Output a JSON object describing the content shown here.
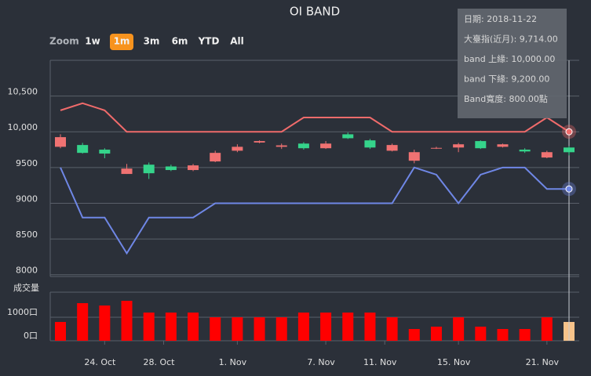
{
  "chart_data": {
    "type": "candlestick",
    "title": "OI BAND",
    "range_selector": {
      "label": "Zoom",
      "buttons": [
        "1w",
        "1m",
        "3m",
        "6m",
        "YTD",
        "All"
      ],
      "selected": 1,
      "selected_color": "#f7931e"
    },
    "x": [
      "2018-10-22",
      "2018-10-23",
      "2018-10-24",
      "2018-10-25",
      "2018-10-26",
      "2018-10-29",
      "2018-10-30",
      "2018-10-31",
      "2018-11-01",
      "2018-11-02",
      "2018-11-05",
      "2018-11-06",
      "2018-11-07",
      "2018-11-08",
      "2018-11-09",
      "2018-11-12",
      "2018-11-13",
      "2018-11-14",
      "2018-11-15",
      "2018-11-16",
      "2018-11-19",
      "2018-11-20",
      "2018-11-21",
      "2018-11-22"
    ],
    "xticks": [
      {
        "value": "2018-10-24",
        "label": "24. Oct"
      },
      {
        "value": "2018-10-28",
        "label": "28. Oct"
      },
      {
        "value": "2018-11-01",
        "label": "1. Nov"
      },
      {
        "value": "2018-11-07",
        "label": "7. Nov"
      },
      {
        "value": "2018-11-11",
        "label": "11. Nov"
      },
      {
        "value": "2018-11-15",
        "label": "15. Nov"
      },
      {
        "value": "2018-11-21",
        "label": "21. Nov"
      }
    ],
    "ylim": [
      7975,
      11000
    ],
    "yticks": [
      8000,
      8500,
      9000,
      9500,
      {
        "value": 10000,
        "label": "10,000"
      },
      {
        "value": 10500,
        "label": "10,500"
      }
    ],
    "grid": true,
    "ohlc": {
      "up_color": "#f07272",
      "down_color": "#35d48b",
      "open": [
        9790,
        9815,
        9750,
        9410,
        9540,
        9515,
        9465,
        9585,
        9735,
        9850,
        9790,
        9835,
        9770,
        9965,
        9880,
        9735,
        9595,
        9770,
        9780,
        9870,
        9790,
        9750,
        9640,
        9780
      ],
      "high": [
        9965,
        9845,
        9770,
        9550,
        9570,
        9540,
        9550,
        9735,
        9825,
        9880,
        9835,
        9855,
        9870,
        9990,
        9900,
        9835,
        9750,
        9790,
        9845,
        9880,
        9835,
        9770,
        9735,
        9800
      ],
      "low": [
        9770,
        9695,
        9630,
        9410,
        9340,
        9450,
        9450,
        9575,
        9715,
        9840,
        9760,
        9750,
        9760,
        9900,
        9760,
        9725,
        9560,
        9760,
        9715,
        9760,
        9780,
        9705,
        9630,
        9670
      ],
      "close": [
        9925,
        9705,
        9695,
        9485,
        9420,
        9465,
        9530,
        9705,
        9790,
        9870,
        9810,
        9770,
        9835,
        9910,
        9780,
        9815,
        9715,
        9775,
        9825,
        9770,
        9825,
        9725,
        9715,
        9714
      ]
    },
    "series": [
      {
        "color": "#f06b6b",
        "values": [
          10300,
          10400,
          10300,
          10000,
          10000,
          10000,
          10000,
          10000,
          10000,
          10000,
          10000,
          10200,
          10200,
          10200,
          10200,
          10000,
          10000,
          10000,
          10000,
          10000,
          10000,
          10000,
          10200,
          10000
        ]
      },
      {
        "color": "#6f87e6",
        "values": [
          9500,
          8800,
          8800,
          8300,
          8800,
          8800,
          8800,
          9000,
          9000,
          9000,
          9000,
          9000,
          9000,
          9000,
          9000,
          9000,
          9500,
          9400,
          9000,
          9400,
          9500,
          9500,
          9200,
          9200
        ]
      }
    ],
    "volume": {
      "label": "成交量",
      "color": "#ff0000",
      "hover_color": "#f7c38a",
      "values": [
        800,
        1600,
        1500,
        1700,
        1200,
        1200,
        1200,
        1000,
        1000,
        1000,
        1000,
        1200,
        1200,
        1200,
        1200,
        1000,
        500,
        600,
        1000,
        600,
        500,
        500,
        1000,
        800
      ],
      "ylim": [
        0,
        2067
      ],
      "yticks": [
        {
          "value": 0,
          "label": "0口"
        },
        {
          "value": 1000,
          "label": "1000口"
        }
      ]
    },
    "hover": 23,
    "tooltip": [
      "日期: 2018-11-22",
      "大臺指(近月): 9,714.00",
      "band 上緣: 10,000.00",
      "band 下緣: 9,200.00",
      "Band寬度: 800.00點"
    ]
  }
}
